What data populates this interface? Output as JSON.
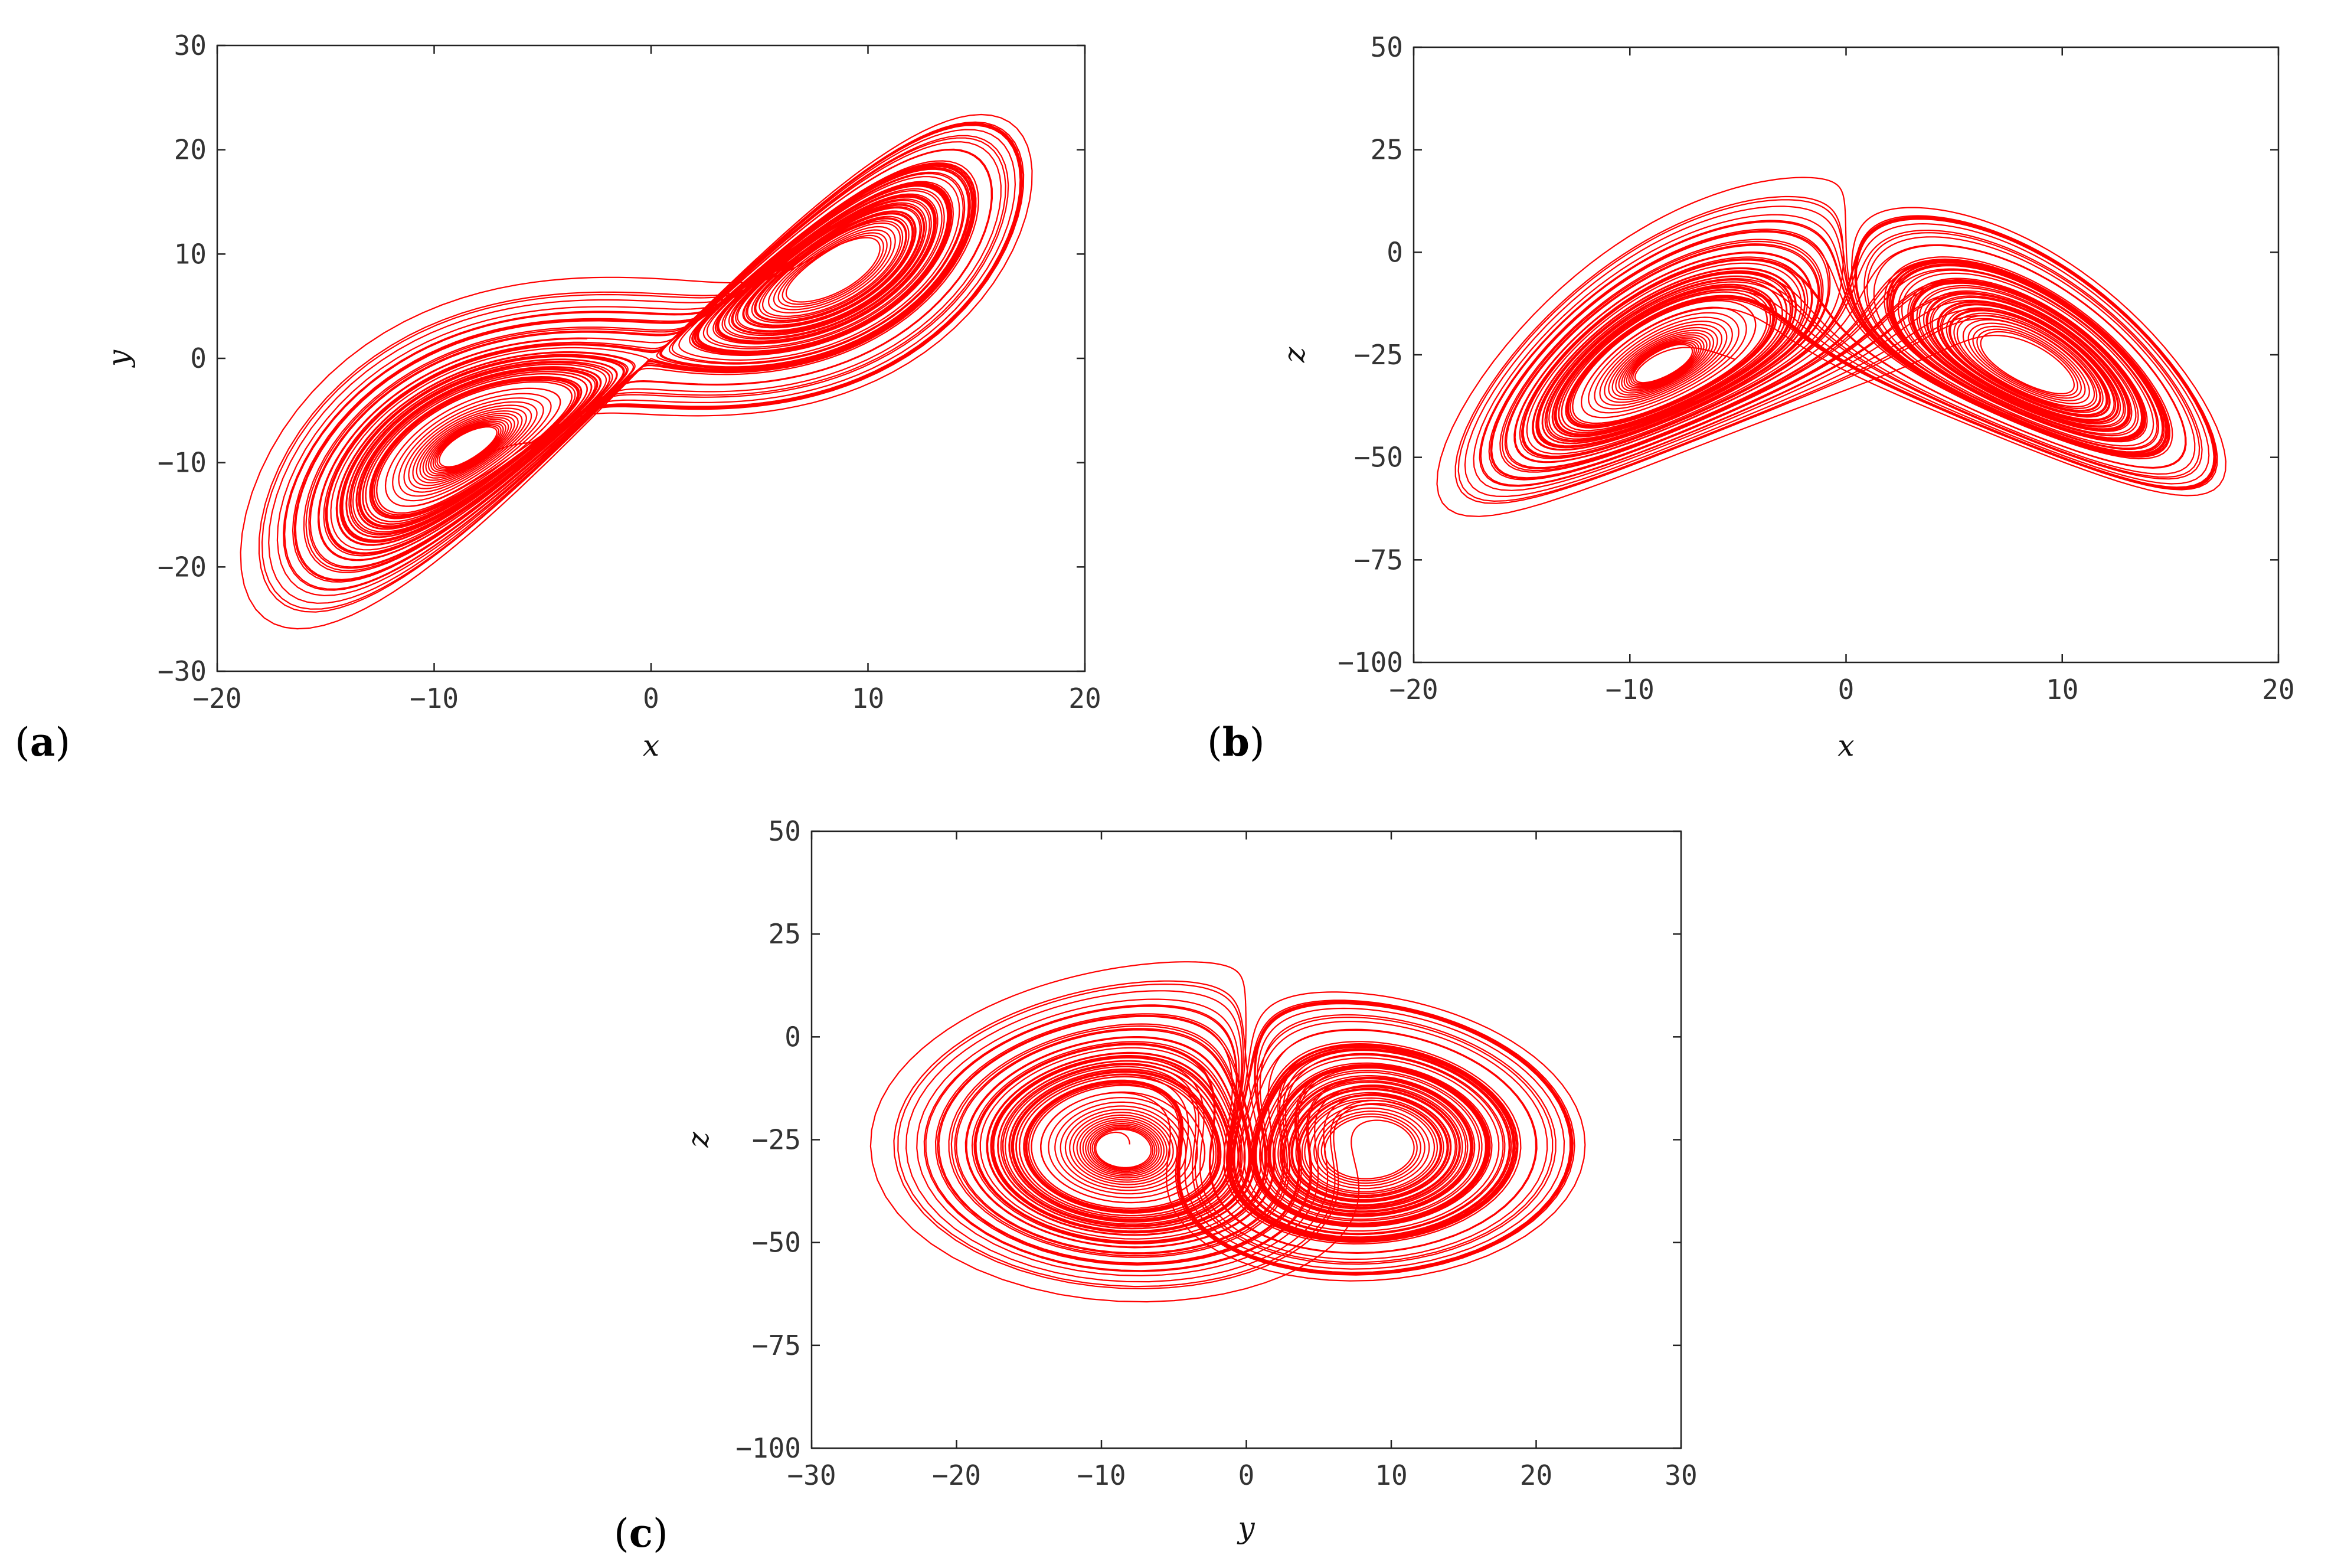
{
  "chart_data": [
    {
      "type": "line",
      "panel_label": "a",
      "xlabel": "x",
      "ylabel": "y",
      "xlim": [
        -20,
        20
      ],
      "ylim": [
        -30,
        30
      ],
      "xticks": [
        -20,
        -10,
        0,
        10,
        20
      ],
      "yticks": [
        -30,
        -20,
        -10,
        0,
        10,
        20,
        30
      ],
      "x_var": "x",
      "y_var": "y",
      "series_color": "#ff0000",
      "grid": false
    },
    {
      "type": "line",
      "panel_label": "b",
      "xlabel": "x",
      "ylabel": "z",
      "xlim": [
        -20,
        20
      ],
      "ylim": [
        -100,
        50
      ],
      "xticks": [
        -20,
        -10,
        0,
        10,
        20
      ],
      "yticks": [
        -100,
        -75,
        -50,
        -25,
        0,
        25,
        50
      ],
      "x_var": "x",
      "y_var": "z",
      "series_color": "#ff0000",
      "grid": false
    },
    {
      "type": "line",
      "panel_label": "c",
      "xlabel": "y",
      "ylabel": "z",
      "xlim": [
        -30,
        30
      ],
      "ylim": [
        -100,
        50
      ],
      "xticks": [
        -30,
        -20,
        -10,
        0,
        10,
        20,
        30
      ],
      "yticks": [
        -100,
        -75,
        -50,
        -25,
        0,
        25,
        50
      ],
      "x_var": "y",
      "y_var": "z",
      "series_color": "#ff0000",
      "grid": false
    }
  ]
}
